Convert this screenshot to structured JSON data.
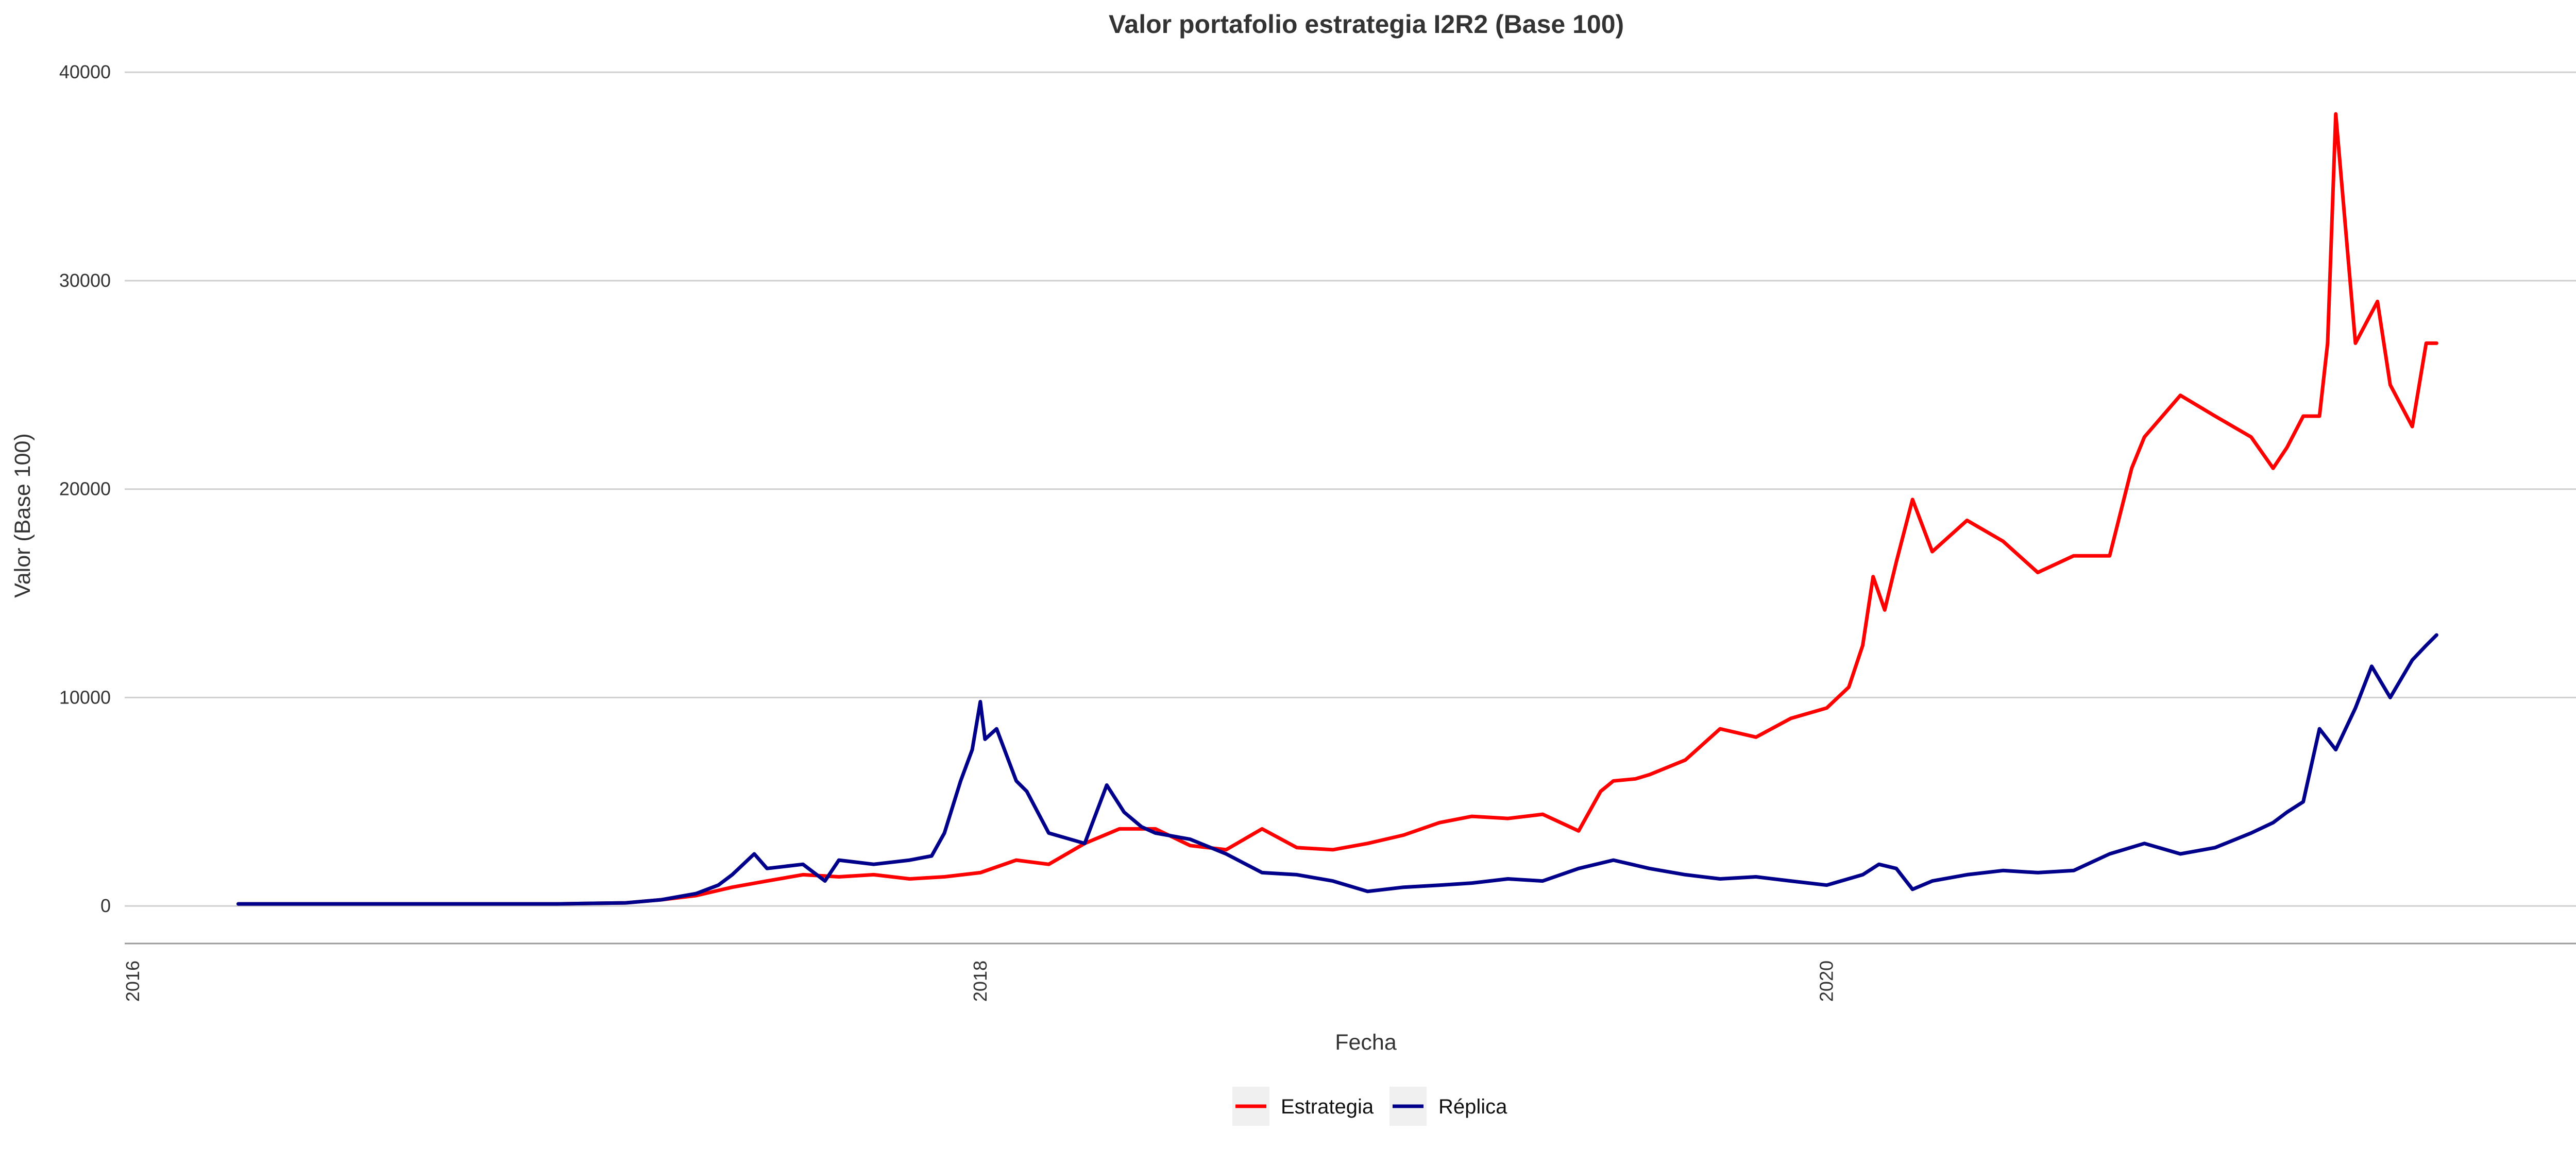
{
  "chart_data": {
    "type": "line",
    "title": "Valor portafolio estrategia I2R2 (Base 100)",
    "xlabel": "Fecha",
    "ylabel": "Valor (Base 100)",
    "x_range": [
      "2015-12-25",
      "2021-10-10"
    ],
    "ylim": [
      -1800,
      40500
    ],
    "x_ticks": [
      "2016",
      "2018",
      "2020"
    ],
    "x_tick_dates": [
      "2016-01-01",
      "2018-01-01",
      "2020-01-01"
    ],
    "y_ticks": [
      0,
      10000,
      20000,
      30000,
      40000
    ],
    "grid": "horizontal major",
    "legend_position": "bottom",
    "series": [
      {
        "name": "Estrategia",
        "color": "#ff0000",
        "x": [
          "2016-04-01",
          "2016-08-01",
          "2017-01-01",
          "2017-03-01",
          "2017-04-01",
          "2017-05-01",
          "2017-06-01",
          "2017-07-01",
          "2017-08-01",
          "2017-09-01",
          "2017-10-01",
          "2017-11-01",
          "2017-12-01",
          "2018-01-01",
          "2018-02-01",
          "2018-03-01",
          "2018-04-01",
          "2018-05-01",
          "2018-06-01",
          "2018-07-01",
          "2018-08-01",
          "2018-09-01",
          "2018-10-01",
          "2018-11-01",
          "2018-12-01",
          "2019-01-01",
          "2019-02-01",
          "2019-03-01",
          "2019-04-01",
          "2019-05-01",
          "2019-06-01",
          "2019-06-20",
          "2019-07-01",
          "2019-07-20",
          "2019-08-01",
          "2019-09-01",
          "2019-10-01",
          "2019-11-01",
          "2019-12-01",
          "2020-01-01",
          "2020-01-20",
          "2020-02-01",
          "2020-02-10",
          "2020-02-20",
          "2020-03-01",
          "2020-03-15",
          "2020-04-01",
          "2020-05-01",
          "2020-06-01",
          "2020-07-01",
          "2020-08-01",
          "2020-09-01",
          "2020-09-20",
          "2020-10-01",
          "2020-11-01",
          "2020-12-01",
          "2021-01-01",
          "2021-01-20",
          "2021-02-01",
          "2021-02-15",
          "2021-03-01",
          "2021-03-08",
          "2021-03-15",
          "2021-04-01",
          "2021-04-20",
          "2021-05-01",
          "2021-05-20",
          "2021-06-01",
          "2021-06-10"
        ],
        "y": [
          100,
          100,
          100,
          150,
          300,
          500,
          900,
          1200,
          1500,
          1400,
          1500,
          1300,
          1400,
          1600,
          2200,
          2000,
          3000,
          3700,
          3700,
          2900,
          2700,
          3700,
          2800,
          2700,
          3000,
          3400,
          4000,
          4300,
          4200,
          4400,
          3600,
          5500,
          6000,
          6100,
          6300,
          7000,
          8500,
          8100,
          9000,
          9500,
          10500,
          12500,
          15800,
          14200,
          16500,
          19500,
          17000,
          18500,
          17500,
          16000,
          16800,
          16800,
          21000,
          22500,
          24500,
          23500,
          22500,
          21000,
          22000,
          23500,
          23500,
          27000,
          38000,
          27000,
          29000,
          25000,
          23000,
          27000,
          27000
        ]
      },
      {
        "name": "Réplica",
        "color": "#00008b",
        "x": [
          "2016-04-01",
          "2016-08-01",
          "2017-01-01",
          "2017-03-01",
          "2017-04-01",
          "2017-05-01",
          "2017-05-20",
          "2017-06-01",
          "2017-06-20",
          "2017-07-01",
          "2017-08-01",
          "2017-08-20",
          "2017-09-01",
          "2017-10-01",
          "2017-11-01",
          "2017-11-20",
          "2017-12-01",
          "2017-12-15",
          "2017-12-25",
          "2018-01-01",
          "2018-01-05",
          "2018-01-15",
          "2018-02-01",
          "2018-02-10",
          "2018-03-01",
          "2018-04-01",
          "2018-04-20",
          "2018-05-05",
          "2018-05-20",
          "2018-06-01",
          "2018-07-01",
          "2018-08-01",
          "2018-09-01",
          "2018-10-01",
          "2018-11-01",
          "2018-12-01",
          "2019-01-01",
          "2019-02-01",
          "2019-03-01",
          "2019-04-01",
          "2019-05-01",
          "2019-06-01",
          "2019-07-01",
          "2019-08-01",
          "2019-09-01",
          "2019-10-01",
          "2019-11-01",
          "2019-12-01",
          "2020-01-01",
          "2020-02-01",
          "2020-02-15",
          "2020-03-01",
          "2020-03-15",
          "2020-04-01",
          "2020-05-01",
          "2020-06-01",
          "2020-07-01",
          "2020-08-01",
          "2020-09-01",
          "2020-10-01",
          "2020-11-01",
          "2020-12-01",
          "2021-01-01",
          "2021-01-20",
          "2021-02-01",
          "2021-02-15",
          "2021-03-01",
          "2021-03-15",
          "2021-04-01",
          "2021-04-15",
          "2021-05-01",
          "2021-05-20",
          "2021-06-01",
          "2021-06-10"
        ],
        "y": [
          100,
          100,
          100,
          150,
          300,
          600,
          1000,
          1500,
          2500,
          1800,
          2000,
          1200,
          2200,
          2000,
          2200,
          2400,
          3500,
          6000,
          7500,
          9800,
          8000,
          8500,
          6000,
          5500,
          3500,
          3000,
          5800,
          4500,
          3800,
          3500,
          3200,
          2500,
          1600,
          1500,
          1200,
          700,
          900,
          1000,
          1100,
          1300,
          1200,
          1800,
          2200,
          1800,
          1500,
          1300,
          1400,
          1200,
          1000,
          1500,
          2000,
          1800,
          800,
          1200,
          1500,
          1700,
          1600,
          1700,
          2500,
          3000,
          2500,
          2800,
          3500,
          4000,
          4500,
          5000,
          8500,
          7500,
          9500,
          11500,
          10000,
          11800,
          12500,
          13000
        ]
      }
    ]
  }
}
